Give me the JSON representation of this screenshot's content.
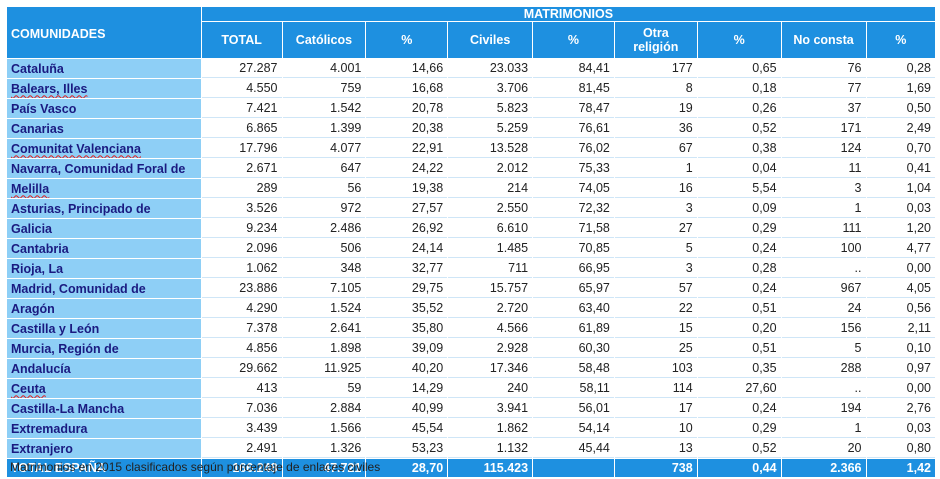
{
  "header": {
    "corner": "COMUNIDADES",
    "group": "MATRIMONIOS",
    "columns": [
      "TOTAL",
      "Católicos",
      "%",
      "Civiles",
      "%",
      "Otra religión",
      "%",
      "No consta",
      "%"
    ]
  },
  "rows": [
    {
      "name": "Cataluña",
      "total": "27.287",
      "cat": "4.001",
      "cat_pct": "14,66",
      "civ": "23.033",
      "civ_pct": "84,41",
      "otra": "177",
      "otra_pct": "0,65",
      "nc": "76",
      "nc_pct": "0,28"
    },
    {
      "name": "Balears, Illes",
      "total": "4.550",
      "cat": "759",
      "cat_pct": "16,68",
      "civ": "3.706",
      "civ_pct": "81,45",
      "otra": "8",
      "otra_pct": "0,18",
      "nc": "77",
      "nc_pct": "1,69"
    },
    {
      "name": "País Vasco",
      "total": "7.421",
      "cat": "1.542",
      "cat_pct": "20,78",
      "civ": "5.823",
      "civ_pct": "78,47",
      "otra": "19",
      "otra_pct": "0,26",
      "nc": "37",
      "nc_pct": "0,50"
    },
    {
      "name": "Canarias",
      "total": "6.865",
      "cat": "1.399",
      "cat_pct": "20,38",
      "civ": "5.259",
      "civ_pct": "76,61",
      "otra": "36",
      "otra_pct": "0,52",
      "nc": "171",
      "nc_pct": "2,49"
    },
    {
      "name": "Comunitat Valenciana",
      "total": "17.796",
      "cat": "4.077",
      "cat_pct": "22,91",
      "civ": "13.528",
      "civ_pct": "76,02",
      "otra": "67",
      "otra_pct": "0,38",
      "nc": "124",
      "nc_pct": "0,70"
    },
    {
      "name": "Navarra, Comunidad Foral de",
      "total": "2.671",
      "cat": "647",
      "cat_pct": "24,22",
      "civ": "2.012",
      "civ_pct": "75,33",
      "otra": "1",
      "otra_pct": "0,04",
      "nc": "11",
      "nc_pct": "0,41"
    },
    {
      "name": "Melilla",
      "total": "289",
      "cat": "56",
      "cat_pct": "19,38",
      "civ": "214",
      "civ_pct": "74,05",
      "otra": "16",
      "otra_pct": "5,54",
      "nc": "3",
      "nc_pct": "1,04"
    },
    {
      "name": "Asturias, Principado de",
      "total": "3.526",
      "cat": "972",
      "cat_pct": "27,57",
      "civ": "2.550",
      "civ_pct": "72,32",
      "otra": "3",
      "otra_pct": "0,09",
      "nc": "1",
      "nc_pct": "0,03"
    },
    {
      "name": "Galicia",
      "total": "9.234",
      "cat": "2.486",
      "cat_pct": "26,92",
      "civ": "6.610",
      "civ_pct": "71,58",
      "otra": "27",
      "otra_pct": "0,29",
      "nc": "111",
      "nc_pct": "1,20"
    },
    {
      "name": "Cantabria",
      "total": "2.096",
      "cat": "506",
      "cat_pct": "24,14",
      "civ": "1.485",
      "civ_pct": "70,85",
      "otra": "5",
      "otra_pct": "0,24",
      "nc": "100",
      "nc_pct": "4,77"
    },
    {
      "name": "Rioja, La",
      "total": "1.062",
      "cat": "348",
      "cat_pct": "32,77",
      "civ": "711",
      "civ_pct": "66,95",
      "otra": "3",
      "otra_pct": "0,28",
      "nc": "..",
      "nc_pct": "0,00"
    },
    {
      "name": "Madrid, Comunidad de",
      "total": "23.886",
      "cat": "7.105",
      "cat_pct": "29,75",
      "civ": "15.757",
      "civ_pct": "65,97",
      "otra": "57",
      "otra_pct": "0,24",
      "nc": "967",
      "nc_pct": "4,05"
    },
    {
      "name": "Aragón",
      "total": "4.290",
      "cat": "1.524",
      "cat_pct": "35,52",
      "civ": "2.720",
      "civ_pct": "63,40",
      "otra": "22",
      "otra_pct": "0,51",
      "nc": "24",
      "nc_pct": "0,56"
    },
    {
      "name": "Castilla y León",
      "total": "7.378",
      "cat": "2.641",
      "cat_pct": "35,80",
      "civ": "4.566",
      "civ_pct": "61,89",
      "otra": "15",
      "otra_pct": "0,20",
      "nc": "156",
      "nc_pct": "2,11"
    },
    {
      "name": "Murcia, Región de",
      "total": "4.856",
      "cat": "1.898",
      "cat_pct": "39,09",
      "civ": "2.928",
      "civ_pct": "60,30",
      "otra": "25",
      "otra_pct": "0,51",
      "nc": "5",
      "nc_pct": "0,10"
    },
    {
      "name": "Andalucía",
      "total": "29.662",
      "cat": "11.925",
      "cat_pct": "40,20",
      "civ": "17.346",
      "civ_pct": "58,48",
      "otra": "103",
      "otra_pct": "0,35",
      "nc": "288",
      "nc_pct": "0,97"
    },
    {
      "name": "Ceuta",
      "total": "413",
      "cat": "59",
      "cat_pct": "14,29",
      "civ": "240",
      "civ_pct": "58,11",
      "otra": "114",
      "otra_pct": "27,60",
      "nc": "..",
      "nc_pct": "0,00"
    },
    {
      "name": "Castilla-La Mancha",
      "total": "7.036",
      "cat": "2.884",
      "cat_pct": "40,99",
      "civ": "3.941",
      "civ_pct": "56,01",
      "otra": "17",
      "otra_pct": "0,24",
      "nc": "194",
      "nc_pct": "2,76"
    },
    {
      "name": "Extremadura",
      "total": "3.439",
      "cat": "1.566",
      "cat_pct": "45,54",
      "civ": "1.862",
      "civ_pct": "54,14",
      "otra": "10",
      "otra_pct": "0,29",
      "nc": "1",
      "nc_pct": "0,03"
    },
    {
      "name": "Extranjero",
      "total": "2.491",
      "cat": "1.326",
      "cat_pct": "53,23",
      "civ": "1.132",
      "civ_pct": "45,44",
      "otra": "13",
      "otra_pct": "0,52",
      "nc": "20",
      "nc_pct": "0,80"
    }
  ],
  "total_row": {
    "name": "TOTAL ESPAÑA",
    "total": "166.248",
    "cat": "47.721",
    "cat_pct": "28,70",
    "civ": "115.423",
    "civ_pct": "",
    "otra": "738",
    "otra_pct": "0,44",
    "nc": "2.366",
    "nc_pct": "1,42"
  },
  "caption": "Matrimonios en 2015 clasificados según porcentaje de enlaces civiles",
  "colors": {
    "header_bg": "#1e90e0",
    "name_bg": "#8ecff6",
    "name_text": "#1a1a80"
  }
}
